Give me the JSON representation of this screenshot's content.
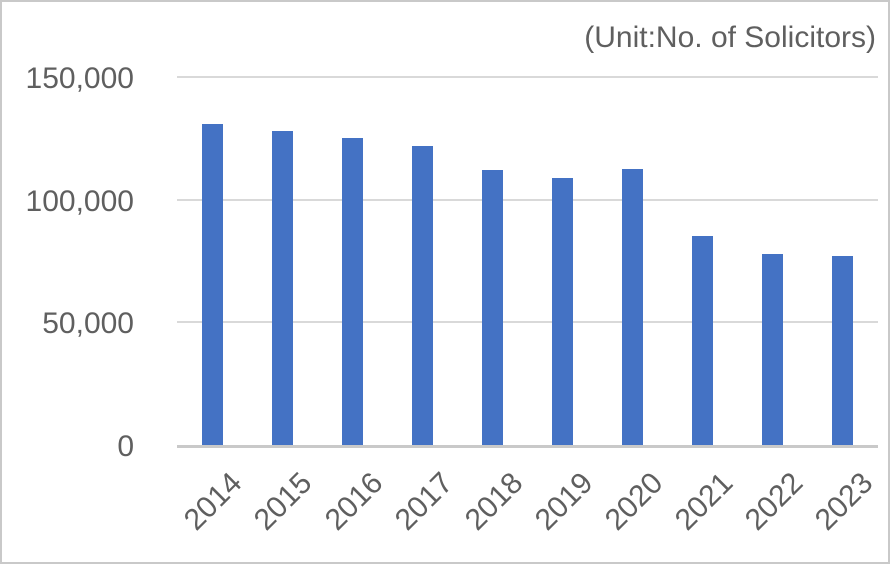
{
  "colors": {
    "bar": "#4472C4",
    "gridline": "#D9D9D9",
    "axis_line": "#C9C9C9",
    "text": "#5F5F5F",
    "background": "#FFFFFF",
    "border": "#C9C9C9"
  },
  "chart_data": {
    "type": "bar",
    "title": "(Unit:No. of Solicitors)",
    "categories": [
      "2014",
      "2015",
      "2016",
      "2017",
      "2018",
      "2019",
      "2020",
      "2021",
      "2022",
      "2023"
    ],
    "values": [
      131000,
      128000,
      125000,
      122000,
      112000,
      109000,
      112500,
      85000,
      78000,
      77000
    ],
    "xlabel": "",
    "ylabel": "",
    "ylim": [
      0,
      150000
    ],
    "ytick_interval": 50000,
    "yticks": [
      0,
      50000,
      100000,
      150000
    ],
    "ytick_labels": [
      "0",
      "50,000",
      "100,000",
      "150,000"
    ],
    "grid": true,
    "legend": false,
    "bar_color": "#4472C4",
    "x_label_rotation_deg": -45,
    "title_position": "top-right"
  }
}
